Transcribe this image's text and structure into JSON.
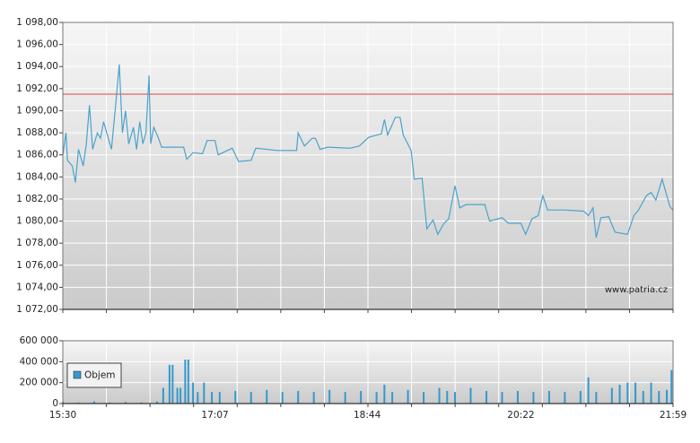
{
  "chart_data": [
    {
      "type": "line",
      "color": "#4aa3cc",
      "x": [
        "15:30",
        "15:32",
        "15:33",
        "15:36",
        "15:38",
        "15:40",
        "15:43",
        "15:45",
        "15:47",
        "15:49",
        "15:52",
        "15:54",
        "15:56",
        "15:59",
        "16:01",
        "16:04",
        "16:06",
        "16:08",
        "16:10",
        "16:12",
        "16:15",
        "16:17",
        "16:19",
        "16:21",
        "16:23",
        "16:25",
        "16:26",
        "16:28",
        "16:31",
        "16:33",
        "16:39",
        "16:47",
        "16:49",
        "16:53",
        "16:59",
        "17:02",
        "17:07",
        "17:09",
        "17:18",
        "17:22",
        "17:30",
        "17:33",
        "17:47",
        "17:59",
        "18:00",
        "18:04",
        "18:09",
        "18:11",
        "18:14",
        "18:19",
        "18:33",
        "18:39",
        "18:45",
        "18:53",
        "18:55",
        "18:57",
        "19:02",
        "19:05",
        "19:07",
        "19:12",
        "19:14",
        "19:19",
        "19:22",
        "19:26",
        "19:29",
        "19:33",
        "19:36",
        "19:40",
        "19:43",
        "19:47",
        "19:59",
        "20:02",
        "20:10",
        "20:14",
        "20:22",
        "20:25",
        "20:29",
        "20:33",
        "20:36",
        "20:39",
        "20:50",
        "21:02",
        "21:05",
        "21:08",
        "21:10",
        "21:13",
        "21:18",
        "21:22",
        "21:30",
        "21:34",
        "21:37",
        "21:42",
        "21:45",
        "21:48",
        "21:52",
        "21:54",
        "21:57",
        "21:59"
      ],
      "values": [
        1086,
        1088,
        1085.5,
        1085,
        1083.5,
        1086.5,
        1085,
        1087,
        1090.5,
        1086.5,
        1088,
        1087.5,
        1089,
        1087.5,
        1086.5,
        1091,
        1094.2,
        1088,
        1090,
        1087,
        1088.5,
        1086.5,
        1089,
        1087,
        1088,
        1093.2,
        1087,
        1088.5,
        1087.5,
        1086.7,
        1086.7,
        1086.7,
        1085.6,
        1086.2,
        1086.1,
        1087.3,
        1087.3,
        1086,
        1086.6,
        1085.4,
        1085.5,
        1086.6,
        1086.4,
        1086.4,
        1088,
        1086.8,
        1087.5,
        1087.5,
        1086.5,
        1086.7,
        1086.6,
        1086.8,
        1087.6,
        1087.9,
        1089.2,
        1087.8,
        1089.4,
        1089.4,
        1087.8,
        1086.4,
        1083.8,
        1083.9,
        1079.3,
        1080.1,
        1078.8,
        1079.8,
        1080.2,
        1083.2,
        1081.2,
        1081.5,
        1081.5,
        1080,
        1080.3,
        1079.8,
        1079.8,
        1078.8,
        1080.2,
        1080.5,
        1082.3,
        1081,
        1081,
        1080.9,
        1080.5,
        1081.2,
        1078.5,
        1080.3,
        1080.4,
        1079,
        1078.8,
        1080.5,
        1081,
        1082.3,
        1082.6,
        1081.9,
        1083.8,
        1082.8,
        1081.3,
        1081
      ],
      "reference_line": {
        "value": 1091.5,
        "color": "#e04040"
      },
      "annotation": "www.patria.cz",
      "xlim": [
        "15:30",
        "21:59"
      ],
      "ylim": [
        1072,
        1098
      ],
      "yticks": [
        {
          "value": 1072,
          "label": "1 072,00"
        },
        {
          "value": 1074,
          "label": "1 074,00"
        },
        {
          "value": 1076,
          "label": "1 076,00"
        },
        {
          "value": 1078,
          "label": "1 078,00"
        },
        {
          "value": 1080,
          "label": "1 080,00"
        },
        {
          "value": 1082,
          "label": "1 082,00"
        },
        {
          "value": 1084,
          "label": "1 084,00"
        },
        {
          "value": 1086,
          "label": "1 086,00"
        },
        {
          "value": 1088,
          "label": "1 088,00"
        },
        {
          "value": 1090,
          "label": "1 090,00"
        },
        {
          "value": 1092,
          "label": "1 092,00"
        },
        {
          "value": 1094,
          "label": "1 094,00"
        },
        {
          "value": 1096,
          "label": "1 096,00"
        },
        {
          "value": 1098,
          "label": "1 098,00"
        }
      ],
      "grid": true
    },
    {
      "type": "bar",
      "x": [
        "15:30",
        "15:40",
        "15:50",
        "16:00",
        "16:10",
        "16:20",
        "16:30",
        "16:34",
        "16:38",
        "16:40",
        "16:43",
        "16:45",
        "16:48",
        "16:50",
        "16:53",
        "16:56",
        "17:00",
        "17:05",
        "17:10",
        "17:20",
        "17:30",
        "17:40",
        "17:50",
        "18:00",
        "18:10",
        "18:20",
        "18:30",
        "18:40",
        "18:50",
        "18:55",
        "19:00",
        "19:10",
        "19:20",
        "19:30",
        "19:35",
        "19:40",
        "19:50",
        "20:00",
        "20:10",
        "20:20",
        "20:30",
        "20:40",
        "20:50",
        "21:00",
        "21:05",
        "21:10",
        "21:20",
        "21:25",
        "21:30",
        "21:35",
        "21:40",
        "21:45",
        "21:50",
        "21:55",
        "21:58"
      ],
      "series": [
        {
          "name": "Objem",
          "color": "#3399cc",
          "values": [
            15000,
            10000,
            20000,
            10000,
            15000,
            10000,
            20000,
            150000,
            370000,
            370000,
            150000,
            150000,
            420000,
            420000,
            200000,
            110000,
            200000,
            110000,
            110000,
            120000,
            110000,
            130000,
            110000,
            120000,
            110000,
            130000,
            110000,
            120000,
            110000,
            180000,
            110000,
            130000,
            110000,
            150000,
            120000,
            110000,
            150000,
            120000,
            110000,
            120000,
            110000,
            120000,
            110000,
            120000,
            250000,
            110000,
            150000,
            180000,
            200000,
            200000,
            120000,
            200000,
            120000,
            130000,
            320000
          ]
        }
      ],
      "xlim": [
        "15:30",
        "21:59"
      ],
      "xticks": [
        "15:30",
        "17:07",
        "18:44",
        "20:22",
        "21:59"
      ],
      "ylim": [
        0,
        600000
      ],
      "yticks": [
        {
          "value": 0,
          "label": "0"
        },
        {
          "value": 200000,
          "label": "200 000"
        },
        {
          "value": 400000,
          "label": "400 000"
        },
        {
          "value": 600000,
          "label": "600 000"
        }
      ],
      "grid": true
    }
  ]
}
